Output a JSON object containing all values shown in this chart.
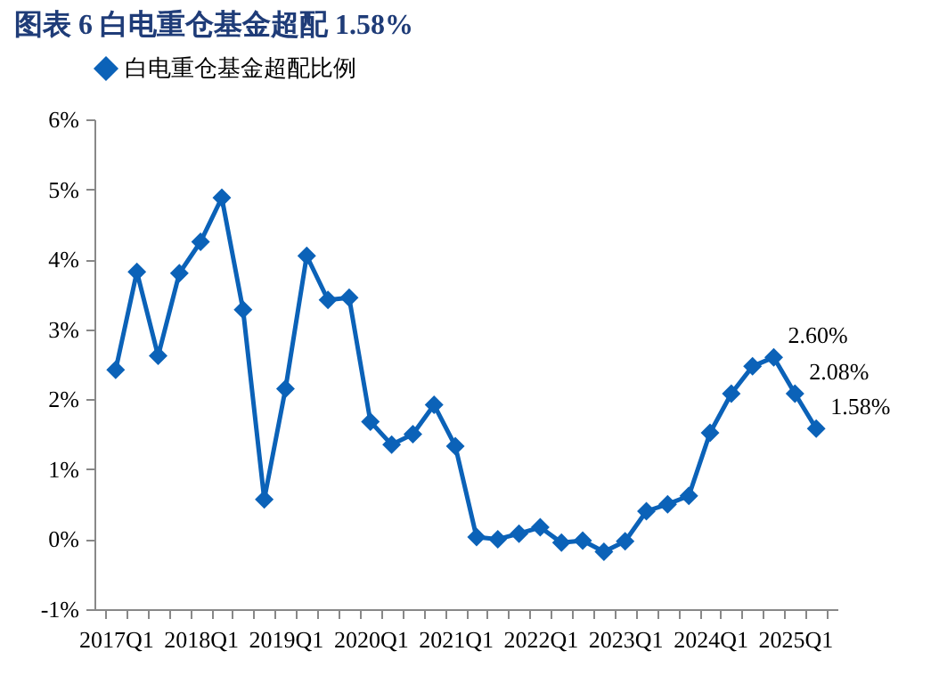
{
  "chart_data": {
    "type": "line",
    "title": "图表 6   白电重仓基金超配 1.58%",
    "categories": [
      "2017Q1",
      null,
      null,
      null,
      "2018Q1",
      null,
      null,
      null,
      "2019Q1",
      null,
      null,
      null,
      "2020Q1",
      null,
      null,
      null,
      "2021Q1",
      null,
      null,
      null,
      "2022Q1",
      null,
      null,
      null,
      "2023Q1",
      null,
      null,
      null,
      "2024Q1",
      null,
      null,
      null,
      "2025Q1",
      null
    ],
    "series": [
      {
        "name": "白电重仓基金超配比例",
        "color": "#0b62b8",
        "values": [
          2.42,
          3.82,
          2.62,
          3.8,
          4.25,
          4.88,
          3.28,
          0.57,
          2.15,
          4.05,
          3.42,
          3.45,
          1.68,
          1.35,
          1.5,
          1.92,
          1.33,
          0.03,
          0.0,
          0.08,
          0.17,
          -0.05,
          -0.02,
          -0.18,
          -0.03,
          0.4,
          0.5,
          0.62,
          1.52,
          2.08,
          2.47,
          2.6,
          2.08,
          1.58
        ],
        "value_labels": [
          null,
          null,
          null,
          null,
          null,
          null,
          null,
          null,
          null,
          null,
          null,
          null,
          null,
          null,
          null,
          null,
          null,
          null,
          null,
          null,
          null,
          null,
          null,
          null,
          null,
          null,
          null,
          null,
          null,
          null,
          null,
          "2.60%",
          "2.08%",
          "1.58%"
        ]
      }
    ],
    "ylim": [
      -1,
      6
    ],
    "yticks": [
      {
        "value": -1,
        "label": "-1%"
      },
      {
        "value": 0,
        "label": "0%"
      },
      {
        "value": 1,
        "label": "1%"
      },
      {
        "value": 2,
        "label": "2%"
      },
      {
        "value": 3,
        "label": "3%"
      },
      {
        "value": 4,
        "label": "4%"
      },
      {
        "value": 5,
        "label": "5%"
      },
      {
        "value": 6,
        "label": "6%"
      }
    ],
    "legend": "top",
    "marker": "diamond",
    "line_style": "solid",
    "grid": false
  }
}
